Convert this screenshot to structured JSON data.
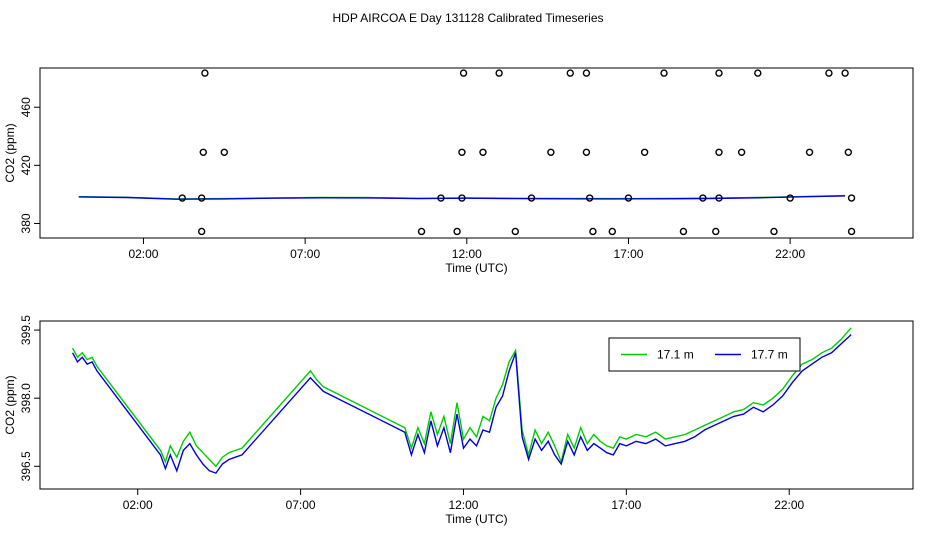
{
  "page": {
    "title": "HDP AIRCOA E  Day 131128  Calibrated Timeseries"
  },
  "chart_data": [
    {
      "type": "scatter",
      "xlabel": "Time (UTC)",
      "ylabel": "CO2 (ppm)",
      "xlim": [
        -1.2,
        25.8
      ],
      "ylim": [
        370,
        487
      ],
      "xticks": [
        {
          "value": 2,
          "label": "02:00"
        },
        {
          "value": 7,
          "label": "07:00"
        },
        {
          "value": 12,
          "label": "12:00"
        },
        {
          "value": 17,
          "label": "17:00"
        },
        {
          "value": 22,
          "label": "22:00"
        }
      ],
      "yticks": [
        {
          "value": 380,
          "label": "380"
        },
        {
          "value": 420,
          "label": "420"
        },
        {
          "value": 460,
          "label": "460"
        }
      ],
      "lines": [
        {
          "color": "#00cc00",
          "x": [
            0.0,
            1.5,
            3.0,
            4.5,
            6.0,
            7.5,
            9.0,
            10.5,
            12.0,
            13.5,
            15.0,
            16.5,
            18.0,
            19.5,
            21.0,
            22.5,
            23.7
          ],
          "y": [
            398.4,
            398.0,
            396.9,
            397.1,
            397.6,
            397.9,
            397.8,
            397.3,
            397.6,
            397.3,
            397.2,
            397.1,
            397.2,
            397.4,
            397.9,
            398.6,
            399.2
          ]
        },
        {
          "color": "#0000dd",
          "x": [
            0.0,
            1.5,
            3.0,
            4.5,
            6.0,
            7.5,
            9.0,
            10.5,
            12.0,
            13.5,
            15.0,
            16.5,
            18.0,
            19.5,
            21.0,
            22.5,
            23.7
          ],
          "y": [
            398.3,
            397.9,
            396.7,
            396.9,
            397.4,
            397.7,
            397.6,
            397.1,
            397.4,
            397.1,
            397.0,
            396.9,
            397.0,
            397.2,
            397.7,
            398.4,
            399.0
          ]
        }
      ],
      "points": [
        {
          "x": 3.9,
          "y": 483.5
        },
        {
          "x": 11.9,
          "y": 483.5
        },
        {
          "x": 13.0,
          "y": 483.5
        },
        {
          "x": 15.2,
          "y": 483.5
        },
        {
          "x": 15.7,
          "y": 483.5
        },
        {
          "x": 18.1,
          "y": 483.5
        },
        {
          "x": 19.8,
          "y": 483.5
        },
        {
          "x": 21.0,
          "y": 483.5
        },
        {
          "x": 23.2,
          "y": 483.5
        },
        {
          "x": 23.7,
          "y": 483.5
        },
        {
          "x": 3.85,
          "y": 429
        },
        {
          "x": 4.5,
          "y": 429
        },
        {
          "x": 11.85,
          "y": 429
        },
        {
          "x": 12.5,
          "y": 429
        },
        {
          "x": 14.6,
          "y": 429
        },
        {
          "x": 15.7,
          "y": 429
        },
        {
          "x": 17.5,
          "y": 429
        },
        {
          "x": 19.8,
          "y": 429
        },
        {
          "x": 20.5,
          "y": 429
        },
        {
          "x": 22.6,
          "y": 429
        },
        {
          "x": 23.8,
          "y": 429
        },
        {
          "x": 3.2,
          "y": 397.5
        },
        {
          "x": 3.8,
          "y": 397.5
        },
        {
          "x": 11.2,
          "y": 397.5
        },
        {
          "x": 11.85,
          "y": 397.5
        },
        {
          "x": 14.0,
          "y": 397.5
        },
        {
          "x": 15.8,
          "y": 397.5
        },
        {
          "x": 17.0,
          "y": 397.5
        },
        {
          "x": 19.3,
          "y": 397.5
        },
        {
          "x": 19.8,
          "y": 397.5
        },
        {
          "x": 22.0,
          "y": 397.5
        },
        {
          "x": 23.9,
          "y": 397.5
        },
        {
          "x": 3.8,
          "y": 374.5
        },
        {
          "x": 10.6,
          "y": 374.5
        },
        {
          "x": 11.7,
          "y": 374.5
        },
        {
          "x": 13.5,
          "y": 374.5
        },
        {
          "x": 15.9,
          "y": 374.5
        },
        {
          "x": 16.5,
          "y": 374.5
        },
        {
          "x": 18.7,
          "y": 374.5
        },
        {
          "x": 19.7,
          "y": 374.5
        },
        {
          "x": 21.5,
          "y": 374.5
        },
        {
          "x": 23.9,
          "y": 374.5
        }
      ]
    },
    {
      "type": "line",
      "xlabel": "Time (UTC)",
      "ylabel": "CO2 (ppm)",
      "xlim": [
        -1.0,
        25.8
      ],
      "ylim": [
        396.0,
        399.7
      ],
      "xticks": [
        {
          "value": 2,
          "label": "02:00"
        },
        {
          "value": 7,
          "label": "07:00"
        },
        {
          "value": 12,
          "label": "12:00"
        },
        {
          "value": 17,
          "label": "17:00"
        },
        {
          "value": 22,
          "label": "22:00"
        }
      ],
      "yticks": [
        {
          "value": 396.5,
          "label": "396.5"
        },
        {
          "value": 398.0,
          "label": "398.0"
        },
        {
          "value": 399.5,
          "label": "399.5"
        }
      ],
      "legend": "top-right",
      "series": [
        {
          "name": "17.1 m",
          "color": "#00cc00",
          "x": [
            0.0,
            0.15,
            0.3,
            0.45,
            0.6,
            0.75,
            2.7,
            2.85,
            3.0,
            3.2,
            3.4,
            3.6,
            3.8,
            4.0,
            4.2,
            4.4,
            4.6,
            4.8,
            5.0,
            5.2,
            7.3,
            7.5,
            7.7,
            10.2,
            10.4,
            10.6,
            10.8,
            11.0,
            11.2,
            11.4,
            11.6,
            11.8,
            12.0,
            12.2,
            12.4,
            12.6,
            12.8,
            13.0,
            13.2,
            13.4,
            13.6,
            13.8,
            14.0,
            14.2,
            14.4,
            14.6,
            14.8,
            15.0,
            15.2,
            15.4,
            15.6,
            15.8,
            16.0,
            16.2,
            16.4,
            16.6,
            16.8,
            17.0,
            17.3,
            17.6,
            17.9,
            18.2,
            18.5,
            18.8,
            19.1,
            19.4,
            19.7,
            20.0,
            20.3,
            20.6,
            20.9,
            21.2,
            21.5,
            21.8,
            22.1,
            22.4,
            22.7,
            23.0,
            23.3,
            23.6,
            23.9
          ],
          "y": [
            399.1,
            398.9,
            399.0,
            398.85,
            398.9,
            398.7,
            396.85,
            396.6,
            396.95,
            396.7,
            397.05,
            397.25,
            396.95,
            396.8,
            396.65,
            396.5,
            396.7,
            396.8,
            396.85,
            396.9,
            398.6,
            398.4,
            398.25,
            397.35,
            396.9,
            397.35,
            397.0,
            397.7,
            397.2,
            397.6,
            397.0,
            397.9,
            397.1,
            397.35,
            397.15,
            397.6,
            397.5,
            398.0,
            398.3,
            398.8,
            399.05,
            397.3,
            396.75,
            397.3,
            397.0,
            397.25,
            396.95,
            396.6,
            397.2,
            396.9,
            397.35,
            397.0,
            397.2,
            397.05,
            396.95,
            396.9,
            397.15,
            397.1,
            397.2,
            397.15,
            397.25,
            397.1,
            397.15,
            397.2,
            397.3,
            397.4,
            397.5,
            397.6,
            397.7,
            397.75,
            397.9,
            397.85,
            398.0,
            398.2,
            398.5,
            398.75,
            398.85,
            399.0,
            399.1,
            399.3,
            399.55
          ]
        },
        {
          "name": "17.7 m",
          "color": "#0000dd",
          "x": [
            0.0,
            0.15,
            0.3,
            0.45,
            0.6,
            0.75,
            2.7,
            2.85,
            3.0,
            3.2,
            3.4,
            3.6,
            3.8,
            4.0,
            4.2,
            4.4,
            4.6,
            4.8,
            5.0,
            5.2,
            7.3,
            7.5,
            7.7,
            10.2,
            10.4,
            10.6,
            10.8,
            11.0,
            11.2,
            11.4,
            11.6,
            11.8,
            12.0,
            12.2,
            12.4,
            12.6,
            12.8,
            13.0,
            13.2,
            13.4,
            13.6,
            13.8,
            14.0,
            14.2,
            14.4,
            14.6,
            14.8,
            15.0,
            15.2,
            15.4,
            15.6,
            15.8,
            16.0,
            16.2,
            16.4,
            16.6,
            16.8,
            17.0,
            17.3,
            17.6,
            17.9,
            18.2,
            18.5,
            18.8,
            19.1,
            19.4,
            19.7,
            20.0,
            20.3,
            20.6,
            20.9,
            21.2,
            21.5,
            21.8,
            22.1,
            22.4,
            22.7,
            23.0,
            23.3,
            23.6,
            23.9
          ],
          "y": [
            399.0,
            398.8,
            398.9,
            398.75,
            398.8,
            398.6,
            396.75,
            396.45,
            396.75,
            396.4,
            396.85,
            397.0,
            396.75,
            396.55,
            396.4,
            396.35,
            396.55,
            396.65,
            396.7,
            396.75,
            398.45,
            398.3,
            398.15,
            397.25,
            396.75,
            397.2,
            396.8,
            397.5,
            396.95,
            397.35,
            396.8,
            397.65,
            396.9,
            397.1,
            396.95,
            397.3,
            397.25,
            397.8,
            398.05,
            398.6,
            399.0,
            397.15,
            396.65,
            397.1,
            396.85,
            397.05,
            396.75,
            396.55,
            397.05,
            396.75,
            397.15,
            396.85,
            397.0,
            396.9,
            396.8,
            396.75,
            397.0,
            396.95,
            397.05,
            397.0,
            397.1,
            396.95,
            397.0,
            397.05,
            397.15,
            397.3,
            397.4,
            397.5,
            397.6,
            397.65,
            397.8,
            397.7,
            397.85,
            398.05,
            398.35,
            398.6,
            398.75,
            398.9,
            399.0,
            399.2,
            399.4
          ]
        }
      ]
    }
  ]
}
